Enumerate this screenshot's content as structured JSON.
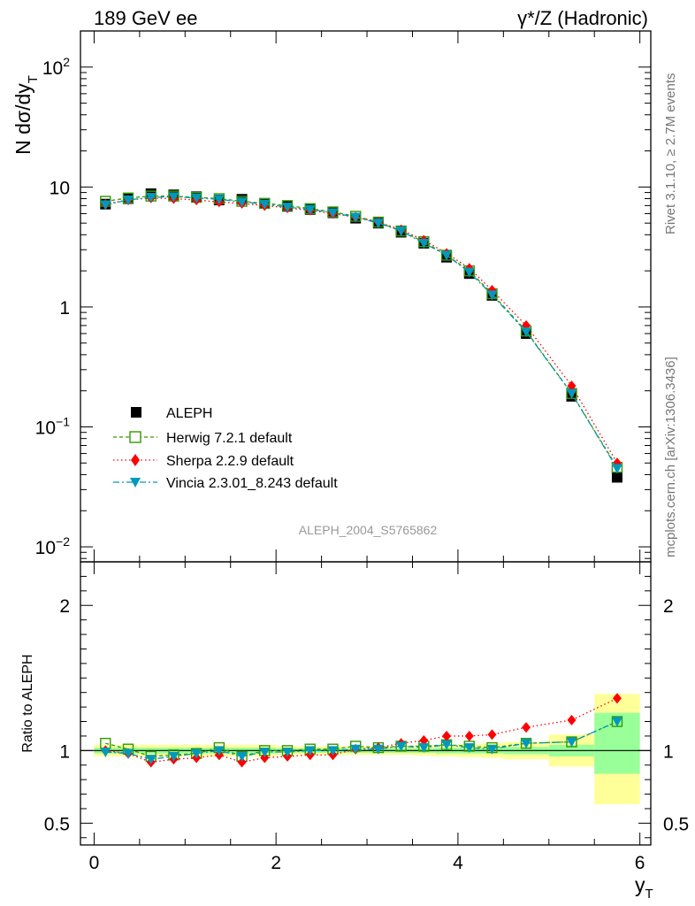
{
  "header": {
    "left_title": "189 GeV ee",
    "right_title": "γ*/Z (Hadronic)",
    "side_label_top": "Rivet 3.1.10, ≥ 2.7M events",
    "side_label_bottom": "mcplots.cern.ch [arXiv:1306.3436]",
    "watermark": "ALEPH_2004_S5765862"
  },
  "colors": {
    "data": "#000000",
    "herwig": "#339900",
    "sherpa": "#ff0000",
    "vincia": "#0099bb",
    "band_outer": "#ffff99",
    "band_inner": "#99ff99"
  },
  "chart_data": {
    "type": "line",
    "x_axis": {
      "label": "y",
      "label_sub": "T",
      "xlim": [
        -0.15,
        6.12
      ],
      "ticks": [
        0,
        2,
        4,
        6
      ],
      "tick_labels": [
        "0",
        "2",
        "4",
        "6"
      ]
    },
    "main": {
      "ylabel": "N dσ/dy",
      "ylabel_sub": "T",
      "scale": "log",
      "ylim": [
        0.0075,
        200
      ],
      "tick_labels": [
        {
          "value": 0.01,
          "base": "10",
          "exp": "−2"
        },
        {
          "value": 0.1,
          "base": "10",
          "exp": "−1"
        },
        {
          "value": 1,
          "base": "1",
          "exp": ""
        },
        {
          "value": 10,
          "base": "10",
          "exp": ""
        },
        {
          "value": 100,
          "base": "10",
          "exp": "2"
        }
      ]
    },
    "ratio": {
      "ylabel": "Ratio to ALEPH",
      "ylim": [
        0.35,
        2.3
      ],
      "tick_labels": [
        {
          "value": 0.5,
          "label": "0.5"
        },
        {
          "value": 1,
          "label": "1"
        },
        {
          "value": 2,
          "label": "2"
        }
      ],
      "bands": [
        {
          "x0": 0.0,
          "x1": 0.25,
          "outer": [
            0.96,
            1.04
          ],
          "inner": [
            0.98,
            1.02
          ]
        },
        {
          "x0": 0.25,
          "x1": 0.5,
          "outer": [
            0.96,
            1.04
          ],
          "inner": [
            0.98,
            1.02
          ]
        },
        {
          "x0": 0.5,
          "x1": 0.75,
          "outer": [
            0.96,
            1.04
          ],
          "inner": [
            0.98,
            1.02
          ]
        },
        {
          "x0": 0.75,
          "x1": 1.0,
          "outer": [
            0.96,
            1.04
          ],
          "inner": [
            0.98,
            1.02
          ]
        },
        {
          "x0": 1.0,
          "x1": 1.25,
          "outer": [
            0.96,
            1.04
          ],
          "inner": [
            0.98,
            1.02
          ]
        },
        {
          "x0": 1.25,
          "x1": 1.5,
          "outer": [
            0.96,
            1.04
          ],
          "inner": [
            0.98,
            1.02
          ]
        },
        {
          "x0": 1.5,
          "x1": 1.75,
          "outer": [
            0.96,
            1.04
          ],
          "inner": [
            0.98,
            1.02
          ]
        },
        {
          "x0": 1.75,
          "x1": 2.0,
          "outer": [
            0.96,
            1.04
          ],
          "inner": [
            0.98,
            1.02
          ]
        },
        {
          "x0": 2.0,
          "x1": 2.25,
          "outer": [
            0.97,
            1.03
          ],
          "inner": [
            0.985,
            1.015
          ]
        },
        {
          "x0": 2.25,
          "x1": 2.5,
          "outer": [
            0.97,
            1.03
          ],
          "inner": [
            0.985,
            1.015
          ]
        },
        {
          "x0": 2.5,
          "x1": 2.75,
          "outer": [
            0.97,
            1.03
          ],
          "inner": [
            0.985,
            1.015
          ]
        },
        {
          "x0": 2.75,
          "x1": 3.0,
          "outer": [
            0.97,
            1.03
          ],
          "inner": [
            0.985,
            1.015
          ]
        },
        {
          "x0": 3.0,
          "x1": 3.25,
          "outer": [
            0.97,
            1.03
          ],
          "inner": [
            0.985,
            1.015
          ]
        },
        {
          "x0": 3.25,
          "x1": 3.5,
          "outer": [
            0.97,
            1.03
          ],
          "inner": [
            0.985,
            1.015
          ]
        },
        {
          "x0": 3.5,
          "x1": 3.75,
          "outer": [
            0.965,
            1.035
          ],
          "inner": [
            0.985,
            1.015
          ]
        },
        {
          "x0": 3.75,
          "x1": 4.0,
          "outer": [
            0.96,
            1.04
          ],
          "inner": [
            0.98,
            1.02
          ]
        },
        {
          "x0": 4.0,
          "x1": 4.25,
          "outer": [
            0.955,
            1.045
          ],
          "inner": [
            0.98,
            1.02
          ]
        },
        {
          "x0": 4.25,
          "x1": 4.5,
          "outer": [
            0.95,
            1.05
          ],
          "inner": [
            0.98,
            1.02
          ]
        },
        {
          "x0": 4.5,
          "x1": 5.0,
          "outer": [
            0.94,
            1.06
          ],
          "inner": [
            0.975,
            1.025
          ]
        },
        {
          "x0": 5.0,
          "x1": 5.5,
          "outer": [
            0.89,
            1.11
          ],
          "inner": [
            0.96,
            1.04
          ]
        },
        {
          "x0": 5.5,
          "x1": 6.0,
          "outer": [
            0.63,
            1.39
          ],
          "inner": [
            0.84,
            1.26
          ]
        }
      ]
    },
    "x": [
      0.125,
      0.375,
      0.625,
      0.875,
      1.125,
      1.375,
      1.625,
      1.875,
      2.125,
      2.375,
      2.625,
      2.875,
      3.125,
      3.375,
      3.625,
      3.875,
      4.125,
      4.375,
      4.75,
      5.25,
      5.75
    ],
    "series": [
      {
        "name": "ALEPH",
        "key": "aleph",
        "values": [
          7.2,
          8.0,
          8.8,
          8.6,
          8.3,
          7.8,
          7.9,
          7.3,
          6.9,
          6.5,
          6.1,
          5.5,
          5.0,
          4.2,
          3.4,
          2.6,
          1.9,
          1.25,
          0.6,
          0.18,
          0.038
        ],
        "ratio": [
          1,
          1,
          1,
          1,
          1,
          1,
          1,
          1,
          1,
          1,
          1,
          1,
          1,
          1,
          1,
          1,
          1,
          1,
          1,
          1,
          1
        ]
      },
      {
        "name": "Herwig 7.2.1 default",
        "key": "herwig",
        "values": [
          7.6,
          8.1,
          8.4,
          8.4,
          8.2,
          8.0,
          7.6,
          7.3,
          7.0,
          6.6,
          6.2,
          5.7,
          5.1,
          4.3,
          3.5,
          2.7,
          2.0,
          1.29,
          0.63,
          0.19,
          0.046
        ],
        "ratio": [
          1.05,
          1.01,
          0.96,
          0.97,
          0.98,
          1.02,
          0.96,
          1.0,
          1.0,
          1.01,
          1.01,
          1.03,
          1.02,
          1.03,
          1.03,
          1.04,
          1.03,
          1.02,
          1.05,
          1.06,
          1.2
        ]
      },
      {
        "name": "Sherpa 2.2.9 default",
        "key": "sherpa",
        "values": [
          7.2,
          7.8,
          8.1,
          8.0,
          7.8,
          7.5,
          7.3,
          7.0,
          6.7,
          6.4,
          6.0,
          5.6,
          5.1,
          4.4,
          3.6,
          2.8,
          2.1,
          1.38,
          0.7,
          0.22,
          0.05
        ],
        "ratio": [
          1.0,
          0.98,
          0.92,
          0.94,
          0.95,
          0.97,
          0.92,
          0.95,
          0.96,
          0.97,
          0.97,
          1.01,
          1.02,
          1.05,
          1.07,
          1.1,
          1.1,
          1.11,
          1.16,
          1.21,
          1.36
        ]
      },
      {
        "name": "Vincia 2.3.01_8.243 default",
        "key": "vincia",
        "values": [
          7.1,
          7.8,
          8.2,
          8.3,
          8.1,
          7.9,
          7.5,
          7.2,
          6.8,
          6.5,
          6.1,
          5.6,
          5.0,
          4.3,
          3.4,
          2.7,
          1.95,
          1.26,
          0.62,
          0.19,
          0.045
        ],
        "ratio": [
          0.99,
          0.98,
          0.94,
          0.96,
          0.98,
          1.0,
          0.96,
          0.99,
          0.99,
          1.0,
          1.0,
          1.01,
          1.01,
          1.03,
          1.02,
          1.04,
          1.02,
          1.01,
          1.05,
          1.06,
          1.2
        ]
      }
    ]
  }
}
